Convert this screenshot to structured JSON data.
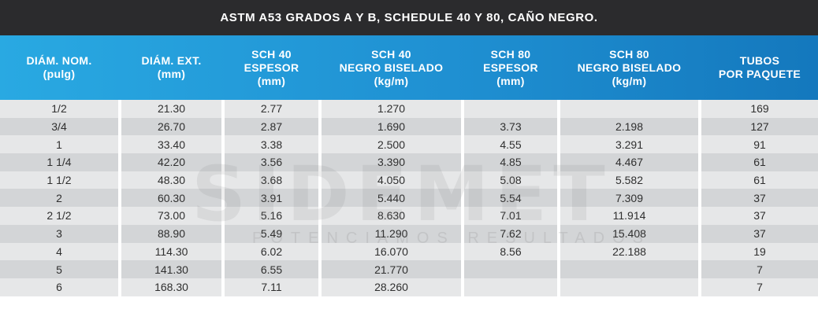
{
  "title": "ASTM A53 GRADOS A Y B, SCHEDULE 40 Y 80, CAÑO NEGRO.",
  "headers": [
    "DIÁM. NOM.\n(pulg)",
    "DIÁM. EXT.\n(mm)",
    "SCH 40\nESPESOR\n(mm)",
    "SCH 40\nNEGRO BISELADO\n(kg/m)",
    "SCH 80\nESPESOR\n(mm)",
    "SCH 80\nNEGRO BISELADO\n(kg/m)",
    "TUBOS\nPOR PAQUETE"
  ],
  "rows": [
    [
      "1/2",
      "21.30",
      "2.77",
      "1.270",
      "",
      "",
      "169"
    ],
    [
      "3/4",
      "26.70",
      "2.87",
      "1.690",
      "3.73",
      "2.198",
      "127"
    ],
    [
      "1",
      "33.40",
      "3.38",
      "2.500",
      "4.55",
      "3.291",
      "91"
    ],
    [
      "1 1/4",
      "42.20",
      "3.56",
      "3.390",
      "4.85",
      "4.467",
      "61"
    ],
    [
      "1 1/2",
      "48.30",
      "3.68",
      "4.050",
      "5.08",
      "5.582",
      "61"
    ],
    [
      "2",
      "60.30",
      "3.91",
      "5.440",
      "5.54",
      "7.309",
      "37"
    ],
    [
      "2 1/2",
      "73.00",
      "5.16",
      "8.630",
      "7.01",
      "11.914",
      "37"
    ],
    [
      "3",
      "88.90",
      "5.49",
      "11.290",
      "7.62",
      "15.408",
      "37"
    ],
    [
      "4",
      "114.30",
      "6.02",
      "16.070",
      "8.56",
      "22.188",
      "19"
    ],
    [
      "5",
      "141.30",
      "6.55",
      "21.770",
      "",
      "",
      "7"
    ],
    [
      "6",
      "168.30",
      "7.11",
      "28.260",
      "",
      "",
      "7"
    ]
  ],
  "watermark": {
    "logo": "SIDEMET",
    "slogan": "POTENCIAMOS RESULTADOS"
  },
  "colors": {
    "title_bg": "#2b2b2d",
    "header_start": "#29a9e2",
    "header_end": "#1478bd",
    "row_light": "#e6e7e8",
    "row_dark": "#d3d5d7"
  }
}
